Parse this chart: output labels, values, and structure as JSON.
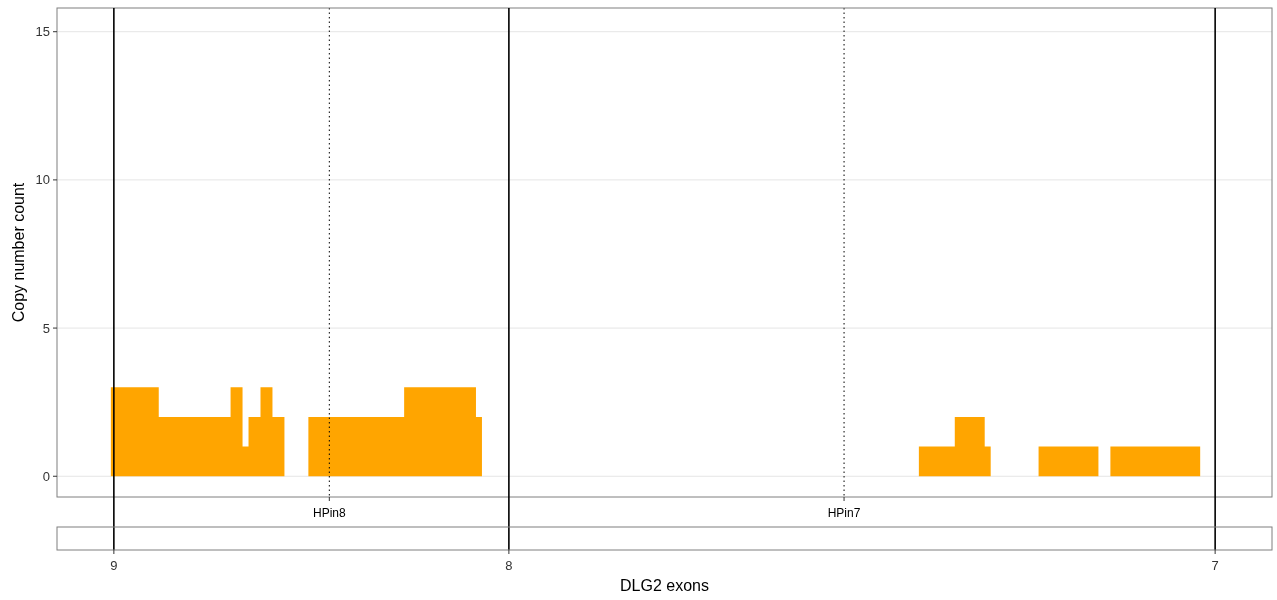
{
  "chart_data": [
    {
      "type": "area",
      "ylabel": "Copy number count",
      "categories": [
        null,
        null,
        null,
        null,
        null,
        null,
        null,
        null,
        null,
        null,
        null,
        null,
        null,
        null,
        null,
        null,
        null,
        null,
        null,
        null,
        null,
        null,
        null,
        null,
        null,
        null,
        null,
        null,
        null,
        null,
        null,
        null,
        null,
        null,
        null,
        null,
        null,
        null,
        null,
        null,
        null,
        null,
        null,
        null,
        null,
        "HPin8",
        null,
        null,
        null,
        null,
        null,
        null,
        null,
        null,
        null,
        null,
        null,
        null,
        null,
        null,
        null,
        null,
        null,
        null,
        null,
        null,
        null,
        null,
        null,
        null,
        null,
        null,
        null,
        null,
        null,
        null,
        null,
        null,
        null,
        null,
        null,
        null,
        null,
        null,
        null,
        null,
        null,
        null,
        null,
        null,
        null,
        null,
        null,
        null,
        null,
        null,
        null,
        null,
        null,
        null,
        null,
        null,
        null,
        null,
        null,
        null,
        null,
        null,
        null,
        null,
        null,
        null,
        null,
        null,
        null,
        null,
        null,
        null,
        null,
        null,
        null,
        null,
        null,
        null,
        null,
        null,
        null,
        null,
        null,
        null,
        null,
        "HPin7",
        null,
        null,
        null,
        null,
        null,
        null,
        null,
        null,
        null,
        null,
        null,
        null,
        null,
        null,
        null,
        null,
        null,
        null,
        null,
        null,
        null,
        null,
        null,
        null,
        null,
        null,
        null,
        null,
        null,
        null,
        null,
        null,
        null,
        null,
        null,
        null,
        null,
        null,
        null,
        null,
        null,
        null,
        null,
        null,
        null,
        null,
        null,
        null,
        null,
        null,
        null,
        null,
        null,
        null,
        null,
        null,
        null,
        null,
        null,
        null,
        null,
        null,
        null,
        null,
        null,
        null,
        null,
        null,
        null,
        null,
        null
      ],
      "values": [
        0,
        0,
        0,
        0,
        0,
        0,
        0,
        0,
        0,
        3,
        3,
        3,
        3,
        3,
        3,
        3,
        3,
        2,
        2,
        2,
        2,
        2,
        2,
        2,
        2,
        2,
        2,
        2,
        2,
        3,
        3,
        1,
        2,
        2,
        3,
        3,
        2,
        2,
        0,
        0,
        0,
        0,
        2,
        2,
        2,
        2,
        2,
        2,
        2,
        2,
        2,
        2,
        2,
        2,
        2,
        2,
        2,
        2,
        3,
        3,
        3,
        3,
        3,
        3,
        3,
        3,
        3,
        3,
        3,
        3,
        2,
        0,
        0,
        0,
        0,
        0,
        0,
        0,
        0,
        0,
        0,
        0,
        0,
        0,
        0,
        0,
        0,
        0,
        0,
        0,
        0,
        0,
        0,
        0,
        0,
        0,
        0,
        0,
        0,
        0,
        0,
        0,
        0,
        0,
        0,
        0,
        0,
        0,
        0,
        0,
        0,
        0,
        0,
        0,
        0,
        0,
        0,
        0,
        0,
        0,
        0,
        0,
        0,
        0,
        0,
        0,
        0,
        0,
        0,
        0,
        0,
        0,
        0,
        0,
        0,
        0,
        0,
        0,
        0,
        0,
        0,
        0,
        0,
        0,
        1,
        1,
        1,
        1,
        1,
        1,
        2,
        2,
        2,
        2,
        2,
        1,
        0,
        0,
        0,
        0,
        0,
        0,
        0,
        0,
        1,
        1,
        1,
        1,
        1,
        1,
        1,
        1,
        1,
        1,
        0,
        0,
        1,
        1,
        1,
        1,
        1,
        1,
        1,
        1,
        1,
        1,
        1,
        1,
        1,
        1,
        1,
        0,
        0,
        0,
        0,
        0,
        0,
        0,
        0,
        0,
        0,
        0,
        0
      ],
      "color": "#ffa500",
      "ylim": [
        -0.7,
        15.8
      ],
      "yticks": [
        0,
        5,
        10,
        15
      ],
      "grid": true,
      "line_style": "dotted"
    },
    {
      "type": "other",
      "xlabel": "DLG2 exons",
      "categories": [
        null,
        null,
        null,
        null,
        null,
        null,
        null,
        null,
        null,
        "9",
        null,
        null,
        null,
        null,
        null,
        null,
        null,
        null,
        null,
        null,
        null,
        null,
        null,
        null,
        null,
        null,
        null,
        null,
        null,
        null,
        null,
        null,
        null,
        null,
        null,
        null,
        null,
        null,
        null,
        null,
        null,
        null,
        null,
        null,
        null,
        null,
        null,
        null,
        null,
        null,
        null,
        null,
        null,
        null,
        null,
        null,
        null,
        null,
        null,
        null,
        null,
        null,
        null,
        null,
        null,
        null,
        null,
        null,
        null,
        null,
        null,
        null,
        null,
        null,
        null,
        "8",
        null,
        null,
        null,
        null,
        null,
        null,
        null,
        null,
        null,
        null,
        null,
        null,
        null,
        null,
        null,
        null,
        null,
        null,
        null,
        null,
        null,
        null,
        null,
        null,
        null,
        null,
        null,
        null,
        null,
        null,
        null,
        null,
        null,
        null,
        null,
        null,
        null,
        null,
        null,
        null,
        null,
        null,
        null,
        null,
        null,
        null,
        null,
        null,
        null,
        null,
        null,
        null,
        null,
        null,
        null,
        null,
        null,
        null,
        null,
        null,
        null,
        null,
        null,
        null,
        null,
        null,
        null,
        null,
        null,
        null,
        null,
        null,
        null,
        null,
        null,
        null,
        null,
        null,
        null,
        null,
        null,
        null,
        null,
        null,
        null,
        null,
        null,
        null,
        null,
        null,
        null,
        null,
        null,
        null,
        null,
        null,
        null,
        null,
        null,
        null,
        null,
        null,
        null,
        null,
        null,
        null,
        null,
        null,
        null,
        null,
        null,
        null,
        null,
        null,
        null,
        null,
        null,
        "7",
        null,
        null,
        null,
        null,
        null,
        null,
        null,
        null,
        null
      ]
    }
  ]
}
